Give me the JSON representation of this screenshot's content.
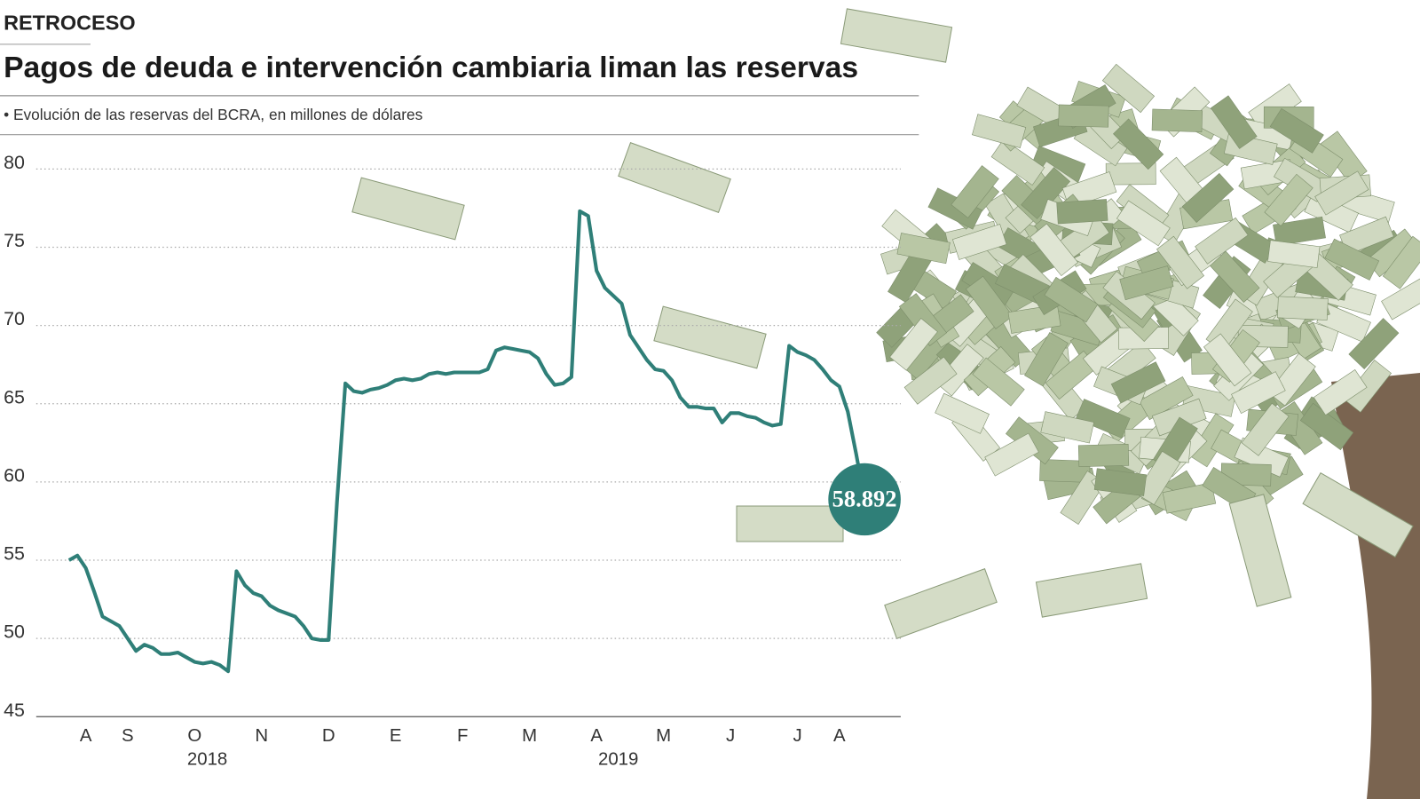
{
  "chart_data": {
    "type": "line",
    "kicker": "RETROCESO",
    "title": "Pagos de deuda e intervención cambiaria liman las reservas",
    "subtitle": "• Evolución de las reservas del BCRA, en millones de dólares",
    "categories": [
      null,
      null,
      "A",
      null,
      null,
      null,
      null,
      "S",
      null,
      null,
      null,
      null,
      null,
      null,
      null,
      "O",
      null,
      null,
      null,
      null,
      null,
      null,
      null,
      "N",
      null,
      null,
      null,
      null,
      null,
      null,
      null,
      "D",
      null,
      null,
      null,
      null,
      null,
      null,
      null,
      "E",
      null,
      null,
      null,
      null,
      null,
      null,
      null,
      "F",
      null,
      null,
      null,
      null,
      null,
      null,
      null,
      "M",
      null,
      null,
      null,
      null,
      null,
      null,
      null,
      "A",
      null,
      null,
      null,
      null,
      null,
      null,
      null,
      "M",
      null,
      null,
      null,
      null,
      null,
      null,
      null,
      "J",
      null,
      null,
      null,
      null,
      null,
      null,
      null,
      "J",
      null,
      null,
      null,
      null,
      "A",
      null,
      null,
      null
    ],
    "years": [
      "2018",
      "2019"
    ],
    "values": [
      55.0,
      55.3,
      54.5,
      53.0,
      51.4,
      51.1,
      50.8,
      50.0,
      49.2,
      49.6,
      49.4,
      49.0,
      49.0,
      49.1,
      48.8,
      48.5,
      48.4,
      48.5,
      48.3,
      47.9,
      54.3,
      53.4,
      52.9,
      52.7,
      52.1,
      51.8,
      51.6,
      51.4,
      50.8,
      50.0,
      49.9,
      49.9,
      58.7,
      66.3,
      65.8,
      65.7,
      65.9,
      66.0,
      66.2,
      66.5,
      66.6,
      66.5,
      66.6,
      66.9,
      67.0,
      66.9,
      67.0,
      67.0,
      67.0,
      67.0,
      67.2,
      68.4,
      68.6,
      68.5,
      68.4,
      68.3,
      67.9,
      66.9,
      66.2,
      66.3,
      66.7,
      77.3,
      77.0,
      73.5,
      72.4,
      71.9,
      71.4,
      69.4,
      68.6,
      67.8,
      67.2,
      67.1,
      66.5,
      65.4,
      64.8,
      64.8,
      64.7,
      64.7,
      63.8,
      64.4,
      64.4,
      64.2,
      64.1,
      63.8,
      63.6,
      63.7,
      68.7,
      68.3,
      68.1,
      67.8,
      67.2,
      66.5,
      66.1,
      64.5,
      61.8,
      58.892
    ],
    "color": "#2f7f78",
    "ylim": [
      45,
      80
    ],
    "yticks": [
      45,
      50,
      55,
      60,
      65,
      70,
      75,
      80
    ],
    "grid": true
  }
}
